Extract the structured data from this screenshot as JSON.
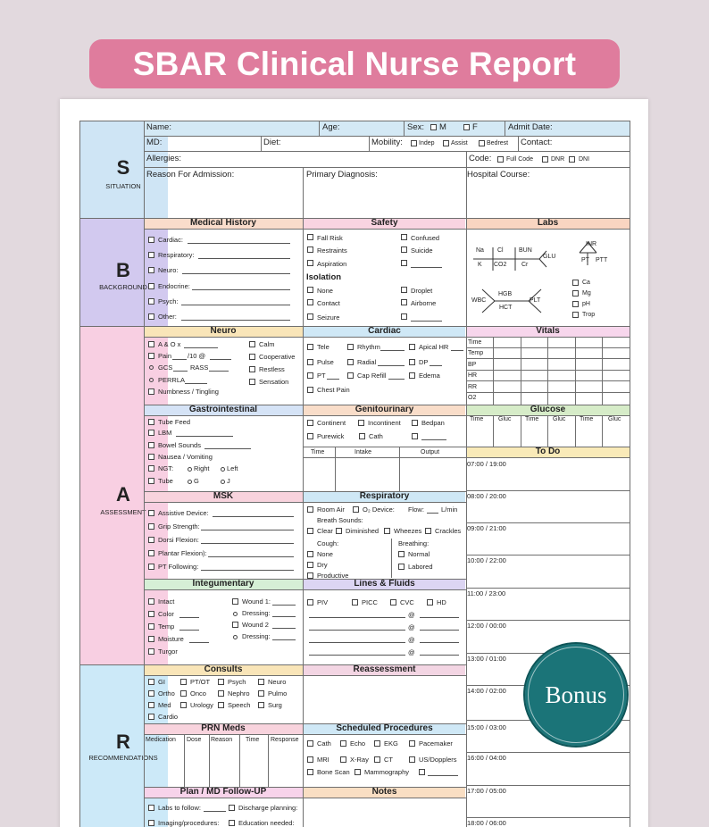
{
  "banner": {
    "title": "SBAR Clinical Nurse Report"
  },
  "bonus_badge": "Bonus",
  "letters": {
    "s": "S",
    "s_word": "SITUATION",
    "b": "B",
    "b_word": "BACKGROUND",
    "a": "A",
    "a_word": "ASSESSMENT",
    "r": "R",
    "r_word": "RECOMMENDATIONS"
  },
  "situation": {
    "name": "Name:",
    "age": "Age:",
    "sex": "Sex:",
    "m": "M",
    "f": "F",
    "admit": "Admit Date:",
    "md": "MD:",
    "diet": "Diet:",
    "mobility": "Mobility:",
    "indep": "Indep",
    "assist": "Assist",
    "bedrest": "Bedrest",
    "contact": "Contact:",
    "allergies": "Allergies:",
    "code": "Code:",
    "full_code": "Full Code",
    "dnr": "DNR",
    "dni": "DNI",
    "reason": "Reason For Admission:",
    "primary": "Primary Diagnosis:",
    "course": "Hospital Course:"
  },
  "mh": {
    "title": "Medical History",
    "items": [
      "Cardiac:",
      "Respiratory:",
      "Neuro:",
      "Endocrine:",
      "Psych:",
      "Other:"
    ]
  },
  "safety": {
    "title": "Safety",
    "fall": "Fall Risk",
    "confused": "Confused",
    "restraints": "Restraints",
    "suicide": "Suicide",
    "aspiration": "Aspiration",
    "isolation": "Isolation",
    "none": "None",
    "droplet": "Droplet",
    "contact": "Contact",
    "airborne": "Airborne",
    "seizure": "Seizure"
  },
  "labs": {
    "title": "Labs",
    "na": "Na",
    "cl": "Cl",
    "bun": "BUN",
    "glu": "GLU",
    "k": "K",
    "co2": "CO2",
    "cr": "Cr",
    "inr": "INR",
    "pt": "PT",
    "ptt": "PTT",
    "wbc": "WBC",
    "hgb": "HGB",
    "hct": "HCT",
    "plt": "PLT",
    "ca": "Ca",
    "mg": "Mg",
    "ph": "pH",
    "trop": "Trop"
  },
  "neuro": {
    "title": "Neuro",
    "aox": "A & O x",
    "pain": "Pain",
    "pain_unit": "/10 @",
    "gcs": "GCS",
    "rass": "RASS",
    "perrla": "PERRLA",
    "numb": "Numbness / Tingling",
    "calm": "Calm",
    "coop": "Cooperative",
    "restless": "Restless",
    "sensation": "Sensation"
  },
  "cardiac": {
    "title": "Cardiac",
    "tele": "Tele",
    "rhythm": "Rhythm",
    "apical": "Apical HR",
    "pulse": "Pulse",
    "radial": "Radial",
    "dp": "DP",
    "pt": "PT",
    "cap": "Cap Refill",
    "edema": "Edema",
    "chest": "Chest Pain"
  },
  "vitals": {
    "title": "Vitals",
    "rows": [
      "Time",
      "Temp",
      "BP",
      "HR",
      "RR",
      "O2"
    ]
  },
  "gi": {
    "title": "Gastrointestinal",
    "tube_feed": "Tube Feed",
    "lbm": "LBM",
    "bowel": "Bowel Sounds",
    "nv": "Nausea / Vomiting",
    "ngt": "NGT:",
    "right": "Right",
    "left": "Left",
    "tube": "Tube",
    "g": "G",
    "j": "J"
  },
  "gu": {
    "title": "Genitourinary",
    "continent": "Continent",
    "incontinent": "Incontinent",
    "bedpan": "Bedpan",
    "purewick": "Purewick",
    "cath": "Cath",
    "time": "Time",
    "intake": "Intake",
    "output": "Output"
  },
  "glucose": {
    "title": "Glucose",
    "cols": [
      "Time",
      "Gluc",
      "Time",
      "Gluc",
      "Time",
      "Gluc"
    ]
  },
  "todo": {
    "title": "To Do",
    "times": [
      "07:00 / 19:00",
      "08:00 / 20:00",
      "09:00 / 21:00",
      "10:00 / 22:00",
      "11:00 / 23:00",
      "12:00 / 00:00",
      "13:00 / 01:00",
      "14:00 / 02:00",
      "15:00 / 03:00",
      "16:00 / 04:00",
      "17:00 / 05:00",
      "18:00 / 06:00"
    ]
  },
  "msk": {
    "title": "MSK",
    "items": [
      "Assistive Device:",
      "Grip Strength:",
      "Dorsi Flexion:",
      "Plantar Flexion):",
      "PT Following:"
    ]
  },
  "resp": {
    "title": "Respiratory",
    "room_air": "Room Air",
    "o2_device": "O₂ Device:",
    "flow": "Flow:",
    "lmin": "L/min",
    "breath": "Breath Sounds:",
    "clear": "Clear",
    "diminished": "Diminished",
    "wheezes": "Wheezes",
    "crackles": "Crackles",
    "cough": "Cough:",
    "breathing": "Breathing:",
    "none": "None",
    "normal": "Normal",
    "dry": "Dry",
    "labored": "Labored",
    "productive": "Productive"
  },
  "integ": {
    "title": "Integumentary",
    "intact": "Intact",
    "color": "Color",
    "temp": "Temp",
    "moisture": "Moisture",
    "turgor": "Turgor",
    "wound1": "Wound 1:",
    "dressing1": "Dressing:",
    "wound2": "Wound 2",
    "dressing2": "Dressing:"
  },
  "lines": {
    "title": "Lines & Fluids",
    "piv": "PIV",
    "picc": "PICC",
    "cvc": "CVC",
    "hd": "HD",
    "at": "@"
  },
  "consults": {
    "title": "Consults",
    "gi": "GI",
    "ptot": "PT/OT",
    "psych": "Psych",
    "neuro": "Neuro",
    "ortho": "Ortho",
    "onco": "Onco",
    "nephro": "Nephro",
    "pulmo": "Pulmo",
    "med": "Med",
    "urology": "Urology",
    "speech": "Speech",
    "surg": "Surg",
    "cardio": "Cardio"
  },
  "reassess": {
    "title": "Reassessment"
  },
  "prn": {
    "title": "PRN Meds",
    "cols": [
      "Medication",
      "Dose",
      "Reason",
      "Time",
      "Response"
    ]
  },
  "sched": {
    "title": "Scheduled Procedures",
    "cath": "Cath",
    "echo": "Echo",
    "ekg": "EKG",
    "pacemaker": "Pacemaker",
    "mri": "MRI",
    "xray": "X-Ray",
    "ct": "CT",
    "us": "US/Dopplers",
    "bone": "Bone Scan",
    "mammo": "Mammography"
  },
  "plan": {
    "title": "Plan / MD Follow-UP",
    "labs": "Labs to follow:",
    "discharge": "Discharge planning:",
    "imaging": "Imaging/procedures:",
    "education": "Education needed:"
  },
  "notes": {
    "title": "Notes"
  }
}
